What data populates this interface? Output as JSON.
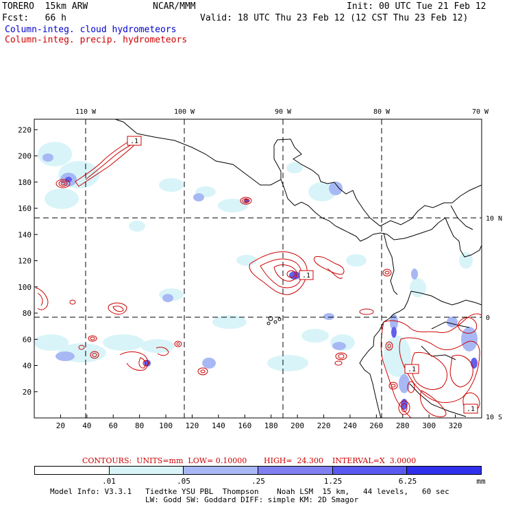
{
  "header": {
    "model": "TORERO  15km ARW",
    "org": "NCAR/MMM",
    "init": "Init: 00 UTC Tue 21 Feb 12",
    "fcst": "Fcst:   66 h",
    "valid": "Valid: 18 UTC Thu 23 Feb 12 (12 CST Thu 23 Feb 12)",
    "field_cloud": "Column-integ. cloud hydrometeors",
    "field_precip": "Column-integ. precip. hydrometeors"
  },
  "map": {
    "lon_labels": [
      "110 W",
      "100 W",
      "90 W",
      "80 W",
      "70 W"
    ],
    "lat_labels": [
      "10 N",
      "0",
      "10 S"
    ],
    "y_ticks": [
      "220",
      "200",
      "180",
      "160",
      "140",
      "120",
      "100",
      "80",
      "60",
      "40",
      "20"
    ],
    "x_ticks": [
      "20",
      "40",
      "60",
      "80",
      "100",
      "120",
      "140",
      "160",
      "180",
      "200",
      "220",
      "240",
      "260",
      "280",
      "300",
      "320"
    ],
    "contour_box_label": ".1"
  },
  "contours": {
    "units_label": "CONTOURS:  UNITS=mm  LOW= 0.10000",
    "high_label": "HIGH=  24.300",
    "interval_label": "INTERVAL=X  3.0000"
  },
  "colorbar": {
    "colors": [
      "#ffffff",
      "#d8f4f8",
      "#a8b8f4",
      "#8080f0",
      "#5a5af0",
      "#3030ec"
    ],
    "labels": [
      ".01",
      ".05",
      ".25",
      "1.25",
      "6.25",
      "mm"
    ]
  },
  "footer": {
    "line1": "Model Info: V3.3.1   Tiedtke YSU PBL  Thompson    Noah LSM  15 km,   44 levels,   60 sec",
    "line2": "LW: Godd SW: Goddard DIFF: simple KM: 2D Smagor"
  },
  "colors": {
    "cloud": "#0000cc",
    "precip": "#cc0000"
  }
}
